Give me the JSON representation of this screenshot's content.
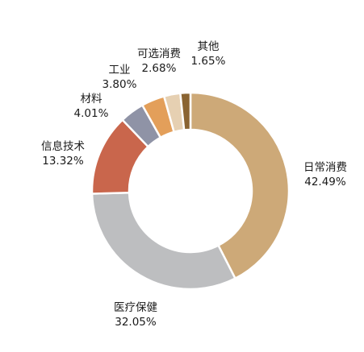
{
  "chart_data": {
    "type": "pie",
    "title": "",
    "donut": true,
    "legend": "none",
    "series": [
      {
        "name": "日常消费",
        "label": "42.49%",
        "value": 42.49,
        "color": "#CDA978"
      },
      {
        "name": "医疗保健",
        "label": "32.05%",
        "value": 32.05,
        "color": "#BDBEC0"
      },
      {
        "name": "信息技术",
        "label": "13.32%",
        "value": 13.32,
        "color": "#C9664C"
      },
      {
        "name": "材料",
        "label": "4.01%",
        "value": 4.01,
        "color": "#8F93A6"
      },
      {
        "name": "工业",
        "label": "3.80%",
        "value": 3.8,
        "color": "#E39F5A"
      },
      {
        "name": "可选消费",
        "label": "2.68%",
        "value": 2.68,
        "color": "#E6D0B2"
      },
      {
        "name": "其他",
        "label": "1.65%",
        "value": 1.65,
        "color": "#8A6432"
      }
    ]
  }
}
